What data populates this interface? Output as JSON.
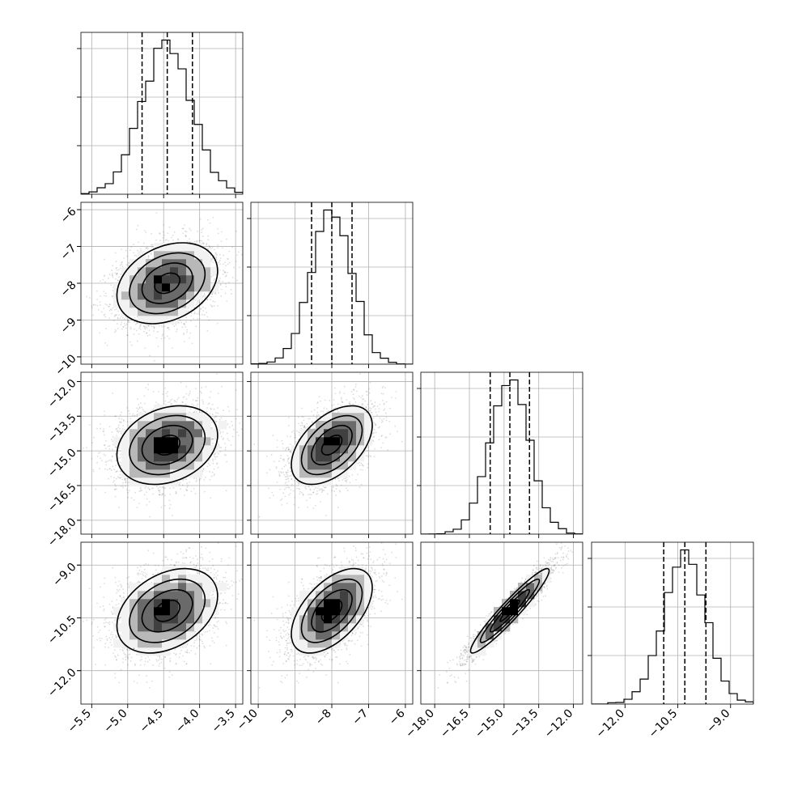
{
  "chart_data": {
    "type": "scatter",
    "subtype": "corner-plot",
    "grid": true,
    "colors": {
      "axes": "#000000",
      "grid": "#b0b0b0",
      "density": "#000000",
      "points": "#444444"
    },
    "parameters": [
      {
        "mean": -4.45,
        "std": 0.35,
        "lim": [
          -5.65,
          -3.4
        ],
        "ticks": [
          -5.5,
          -5.0,
          -4.5,
          -4.0,
          -3.5
        ],
        "tick_labels": [
          "−5.5",
          "−5.0",
          "−4.5",
          "−4.0",
          "−3.5"
        ],
        "quantiles": [
          -4.8,
          -4.45,
          -4.1
        ]
      },
      {
        "mean": -8.0,
        "std": 0.55,
        "lim": [
          -10.2,
          -5.8
        ],
        "ticks": [
          -10,
          -9,
          -8,
          -7,
          -6
        ],
        "tick_labels": [
          "−10",
          "−9",
          "−8",
          "−7",
          "−6"
        ],
        "quantiles": [
          -8.55,
          -8.0,
          -7.45
        ]
      },
      {
        "mean": -14.75,
        "std": 0.85,
        "lim": [
          -18.6,
          -11.6
        ],
        "ticks": [
          -18.0,
          -16.5,
          -15.0,
          -13.5,
          -12.0
        ],
        "tick_labels": [
          "−18.0",
          "−16.5",
          "−15.0",
          "−13.5",
          "−12.0"
        ],
        "quantiles": [
          -15.6,
          -14.75,
          -13.9
        ]
      },
      {
        "mean": -10.3,
        "std": 0.6,
        "lim": [
          -12.95,
          -8.35
        ],
        "ticks": [
          -12.0,
          -10.5,
          -9.0
        ],
        "tick_labels": [
          "−12.0",
          "−10.5",
          "−9.0"
        ],
        "quantiles": [
          -10.9,
          -10.3,
          -9.7
        ]
      }
    ],
    "correlations": [
      [
        1.0,
        0.3,
        0.25,
        0.35
      ],
      [
        0.3,
        1.0,
        0.5,
        0.55
      ],
      [
        0.25,
        0.5,
        1.0,
        0.95
      ],
      [
        0.35,
        0.55,
        0.95,
        1.0
      ]
    ],
    "hist_bins": 20,
    "samples": 8000
  }
}
